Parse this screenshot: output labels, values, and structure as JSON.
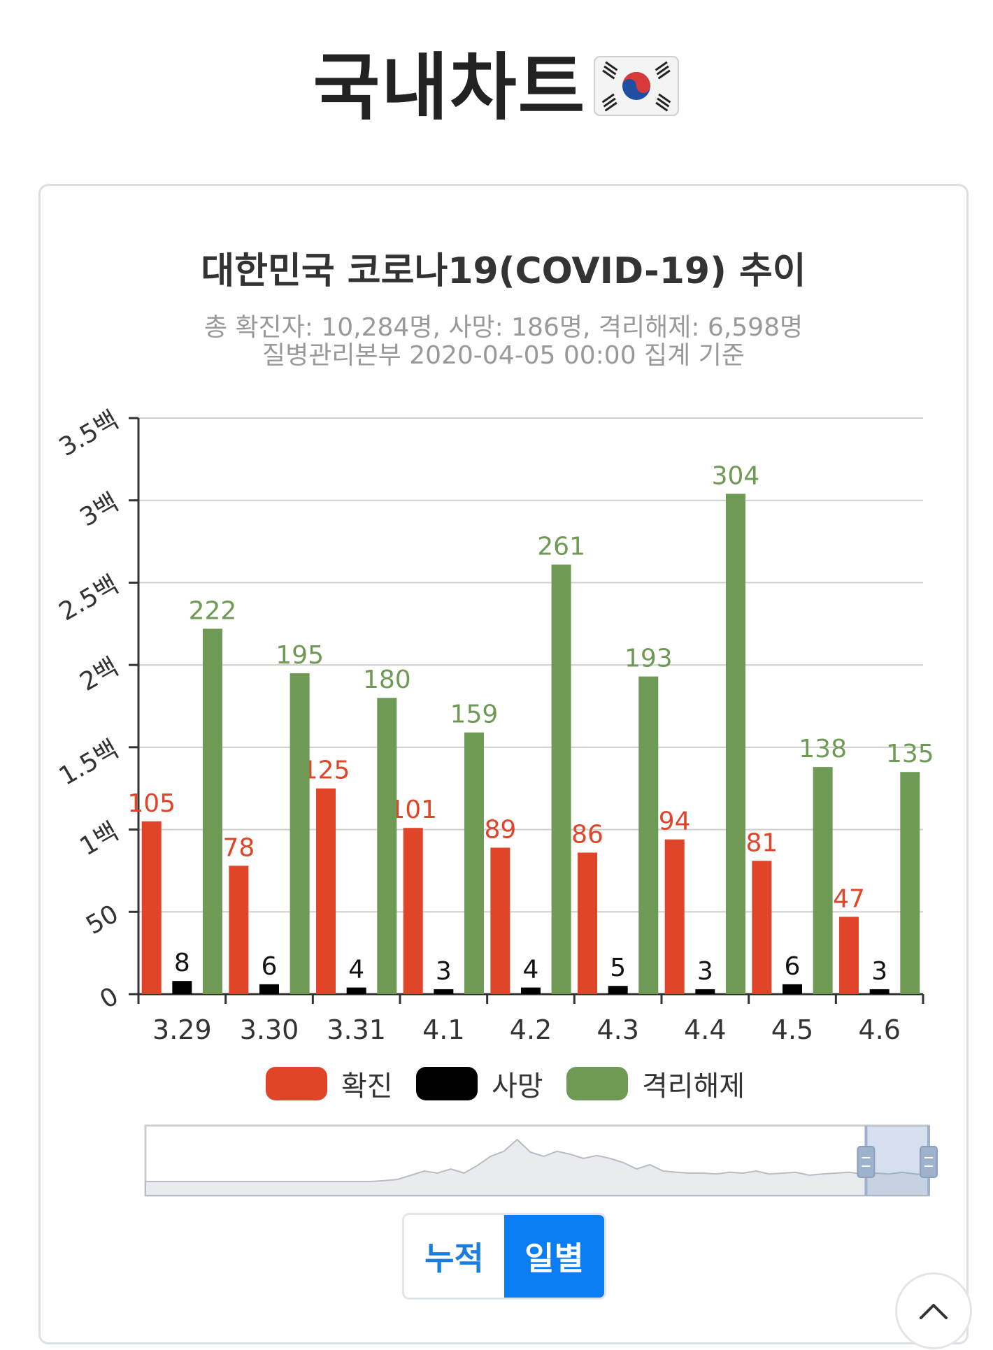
{
  "page": {
    "title": "국내차트",
    "flag_icon": "south-korea-flag-icon"
  },
  "chart_data": {
    "type": "bar",
    "title": "대한민국 코로나19(COVID-19) 추이",
    "subtitle_lines": [
      "총 확진자: 10,284명, 사망: 186명, 격리해제: 6,598명",
      "질병관리본부 2020-04-05 00:00 집계 기준"
    ],
    "categories": [
      "3.29",
      "3.30",
      "3.31",
      "4.1",
      "4.2",
      "4.3",
      "4.4",
      "4.5",
      "4.6"
    ],
    "series": [
      {
        "name": "확진",
        "color": "#e0452a",
        "values": [
          105,
          78,
          125,
          101,
          89,
          86,
          94,
          81,
          47
        ]
      },
      {
        "name": "사망",
        "color": "#000000",
        "values": [
          8,
          6,
          4,
          3,
          4,
          5,
          3,
          6,
          3
        ]
      },
      {
        "name": "격리해제",
        "color": "#6f9a55",
        "values": [
          222,
          195,
          180,
          159,
          261,
          193,
          304,
          138,
          135
        ]
      }
    ],
    "ylim": [
      0,
      350
    ],
    "yticks": [
      {
        "value": 0,
        "label": "0"
      },
      {
        "value": 50,
        "label": "50"
      },
      {
        "value": 100,
        "label": "1백"
      },
      {
        "value": 150,
        "label": "1.5백"
      },
      {
        "value": 200,
        "label": "2백"
      },
      {
        "value": 250,
        "label": "2.5백"
      },
      {
        "value": 300,
        "label": "3백"
      },
      {
        "value": 350,
        "label": "3.5백"
      }
    ],
    "grid": true,
    "legend": "bottom",
    "data_labels": true
  },
  "navigator": {
    "window_start": 0.92,
    "window_end": 1.0
  },
  "toggle": {
    "cumulative_label": "누적",
    "daily_label": "일별",
    "selected": "daily"
  },
  "scroll_top": {
    "icon": "chevron-up-icon"
  }
}
